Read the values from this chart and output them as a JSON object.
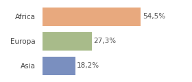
{
  "categories": [
    "Africa",
    "Europa",
    "Asia"
  ],
  "values": [
    54.5,
    27.3,
    18.2
  ],
  "labels": [
    "54,5%",
    "27,3%",
    "18,2%"
  ],
  "bar_colors": [
    "#e8a97e",
    "#a8bb8a",
    "#7a8fbf"
  ],
  "background_color": "#ffffff",
  "xlim": [
    0,
    70
  ],
  "bar_height": 0.75,
  "label_fontsize": 7.5,
  "tick_fontsize": 7.5,
  "figsize": [
    2.8,
    1.2
  ],
  "dpi": 100
}
